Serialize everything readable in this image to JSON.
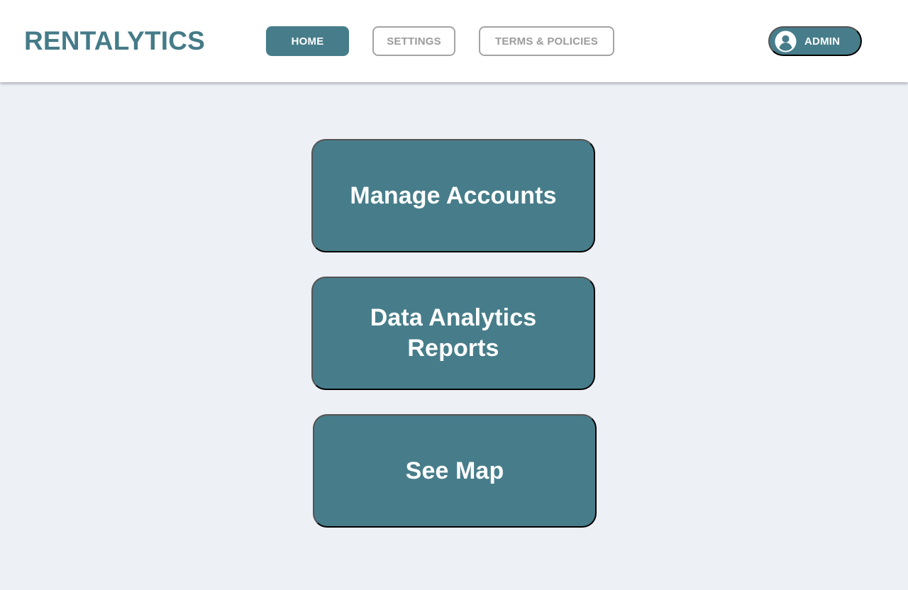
{
  "brand": {
    "name": "RENTALYTICS"
  },
  "nav": {
    "items": [
      {
        "label": "HOME",
        "active": true
      },
      {
        "label": "SETTINGS",
        "active": false
      },
      {
        "label": "TERMS & POLICIES",
        "active": false
      }
    ]
  },
  "user": {
    "label": "ADMIN",
    "icon": "account-circle-icon"
  },
  "actions": [
    {
      "label": "Manage Accounts"
    },
    {
      "label": "Data Analytics\nReports"
    },
    {
      "label": "See Map"
    }
  ],
  "colors": {
    "primary": "#477d8a",
    "brand_text": "#457b88",
    "background": "#edf1f6",
    "header_background": "#ffffff",
    "inactive_text": "#9b9b9b",
    "inactive_border": "#a4a4a4"
  }
}
